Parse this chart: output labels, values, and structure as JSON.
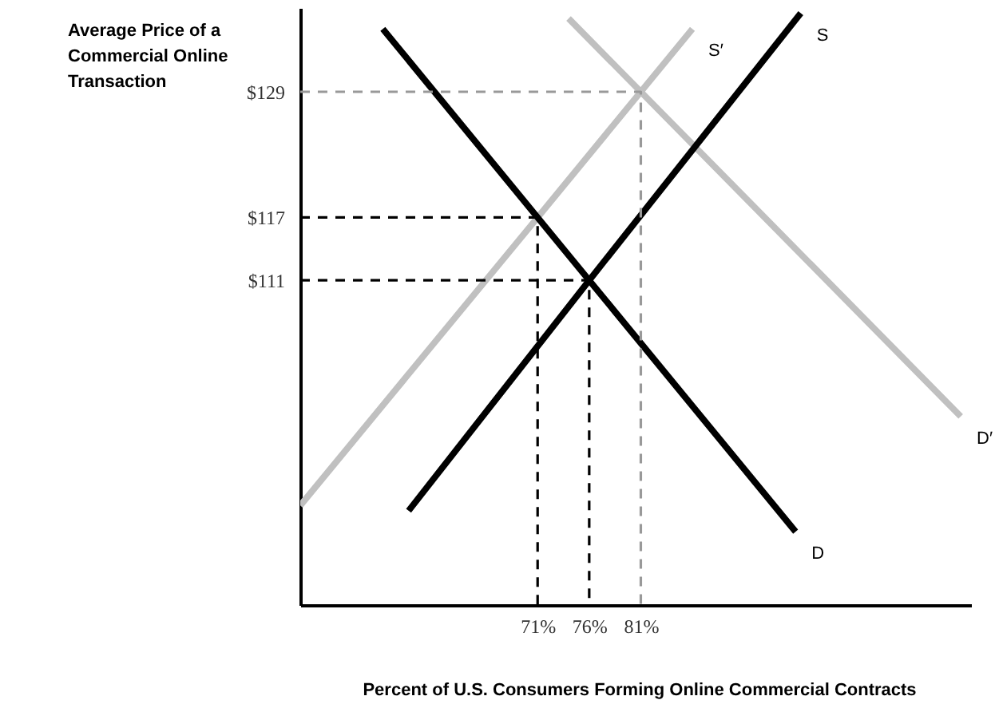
{
  "chart_data": {
    "type": "line",
    "xlabel": "Percent of U.S. Consumers Forming Online Commercial Contracts",
    "ylabel": "Average Price of a Commercial Online Transaction",
    "xlim": [
      48,
      113
    ],
    "ylim": [
      80,
      137
    ],
    "xticks": [
      {
        "value": 71,
        "label": "71%"
      },
      {
        "value": 76,
        "label": "76%"
      },
      {
        "value": 81,
        "label": "81%"
      }
    ],
    "yticks": [
      {
        "value": 111,
        "label": "$111"
      },
      {
        "value": 117,
        "label": "$117"
      },
      {
        "value": 129,
        "label": "$129"
      }
    ],
    "grid": false,
    "marker": "none",
    "series": [
      {
        "name": "S′",
        "color": "#c0c0c0",
        "line_style": "solid",
        "x": [
          48,
          71,
          81,
          86
        ],
        "values": [
          89.5,
          117,
          129,
          135
        ]
      },
      {
        "name": "D′",
        "color": "#c0c0c0",
        "line_style": "solid",
        "x": [
          74,
          81,
          112
        ],
        "values": [
          136,
          129,
          98
        ]
      },
      {
        "name": "S",
        "color": "#000000",
        "line_style": "solid",
        "x": [
          58.5,
          76,
          96.5
        ],
        "values": [
          89,
          111,
          136.5
        ]
      },
      {
        "name": "D",
        "color": "#000000",
        "line_style": "solid",
        "x": [
          56,
          71,
          76,
          96
        ],
        "values": [
          135,
          117,
          111,
          87
        ]
      },
      {
        "color": "#000000",
        "line_style": "dashed",
        "x": [
          48,
          71,
          71
        ],
        "values": [
          117,
          117,
          80
        ]
      },
      {
        "color": "#000000",
        "line_style": "dashed",
        "x": [
          48,
          76,
          76
        ],
        "values": [
          111,
          111,
          80
        ]
      },
      {
        "color": "#999999",
        "line_style": "dashed",
        "x": [
          48,
          81,
          81
        ],
        "values": [
          129,
          129,
          80
        ]
      }
    ]
  }
}
